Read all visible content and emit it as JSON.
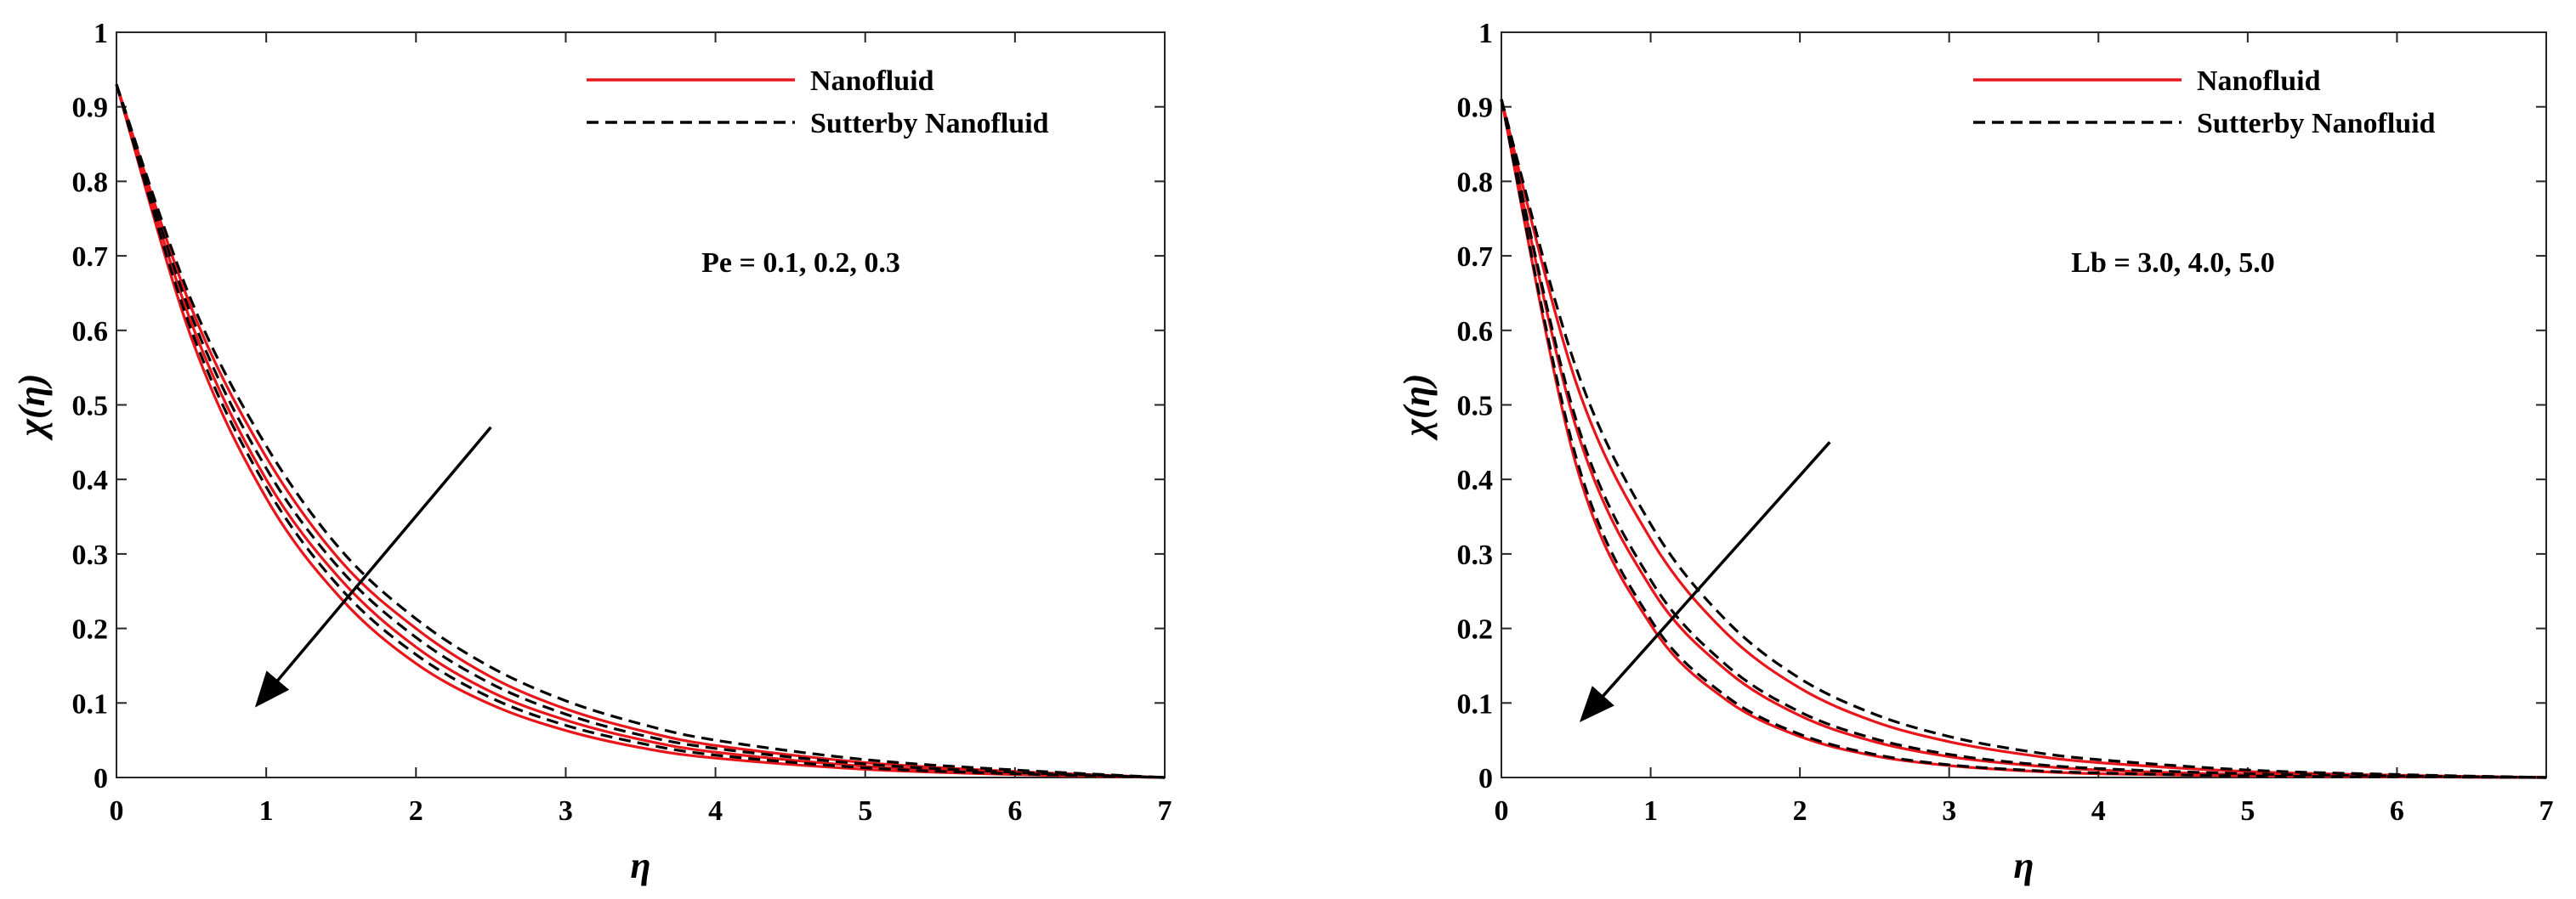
{
  "colors": {
    "nanofluid": "#e8161b",
    "sutterby": "#000000",
    "axes": "#262626"
  },
  "chart_data": [
    {
      "type": "line",
      "xlabel": "η",
      "ylabel": "χ(η)",
      "xlim": [
        0,
        7
      ],
      "ylim": [
        0,
        1
      ],
      "xticks": [
        "0",
        "1",
        "2",
        "3",
        "4",
        "5",
        "6",
        "7"
      ],
      "yticks": [
        "0",
        "0.1",
        "0.2",
        "0.3",
        "0.4",
        "0.5",
        "0.6",
        "0.7",
        "0.8",
        "0.9",
        "1"
      ],
      "legend": {
        "position": "top-right",
        "entries": [
          "Nanofluid",
          "Sutterby Nanofluid"
        ]
      },
      "annotation": "Pe = 0.1, 0.2, 0.3",
      "arrow": {
        "from": [
          2.5,
          0.47
        ],
        "to": [
          0.95,
          0.1
        ]
      },
      "series": [
        {
          "name": "Nanofluid (Pe = 0.1)",
          "style": "solid",
          "color": "red",
          "x": [
            0,
            0.5,
            1,
            1.5,
            2,
            2.5,
            3,
            3.5,
            4,
            5,
            6,
            7
          ],
          "y": [
            0.93,
            0.63,
            0.43,
            0.29,
            0.2,
            0.135,
            0.092,
            0.063,
            0.043,
            0.02,
            0.008,
            0.0
          ]
        },
        {
          "name": "Nanofluid (Pe = 0.2)",
          "style": "solid",
          "color": "red",
          "x": [
            0,
            0.5,
            1,
            1.5,
            2,
            2.5,
            3,
            3.5,
            4,
            5,
            6,
            7
          ],
          "y": [
            0.93,
            0.61,
            0.4,
            0.265,
            0.175,
            0.115,
            0.077,
            0.051,
            0.034,
            0.015,
            0.006,
            0.0
          ]
        },
        {
          "name": "Nanofluid (Pe = 0.3)",
          "style": "solid",
          "color": "red",
          "x": [
            0,
            0.5,
            1,
            1.5,
            2,
            2.5,
            3,
            3.5,
            4,
            5,
            6,
            7
          ],
          "y": [
            0.93,
            0.59,
            0.375,
            0.24,
            0.153,
            0.098,
            0.063,
            0.04,
            0.026,
            0.011,
            0.004,
            0.0
          ]
        },
        {
          "name": "Sutterby Nanofluid (Pe = 0.1)",
          "style": "dashed",
          "color": "black",
          "x": [
            0,
            0.5,
            1,
            1.5,
            2,
            2.5,
            3,
            3.5,
            4,
            5,
            6,
            7
          ],
          "y": [
            0.93,
            0.64,
            0.445,
            0.305,
            0.213,
            0.148,
            0.103,
            0.072,
            0.05,
            0.024,
            0.01,
            0.0
          ]
        },
        {
          "name": "Sutterby Nanofluid (Pe = 0.2)",
          "style": "dashed",
          "color": "black",
          "x": [
            0,
            0.5,
            1,
            1.5,
            2,
            2.5,
            3,
            3.5,
            4,
            5,
            6,
            7
          ],
          "y": [
            0.93,
            0.62,
            0.415,
            0.278,
            0.188,
            0.126,
            0.085,
            0.057,
            0.039,
            0.018,
            0.007,
            0.0
          ]
        },
        {
          "name": "Sutterby Nanofluid (Pe = 0.3)",
          "style": "dashed",
          "color": "black",
          "x": [
            0,
            0.5,
            1,
            1.5,
            2,
            2.5,
            3,
            3.5,
            4,
            5,
            6,
            7
          ],
          "y": [
            0.93,
            0.6,
            0.39,
            0.253,
            0.165,
            0.107,
            0.07,
            0.046,
            0.03,
            0.013,
            0.005,
            0.0
          ]
        }
      ]
    },
    {
      "type": "line",
      "xlabel": "η",
      "ylabel": "χ(η)",
      "xlim": [
        0,
        7
      ],
      "ylim": [
        0,
        1
      ],
      "xticks": [
        "0",
        "1",
        "2",
        "3",
        "4",
        "5",
        "6",
        "7"
      ],
      "yticks": [
        "0",
        "0.1",
        "0.2",
        "0.3",
        "0.4",
        "0.5",
        "0.6",
        "0.7",
        "0.8",
        "0.9",
        "1"
      ],
      "legend": {
        "position": "top-right",
        "entries": [
          "Nanofluid",
          "Sutterby Nanofluid"
        ]
      },
      "annotation": "Lb = 3.0, 4.0, 5.0",
      "arrow": {
        "from": [
          2.2,
          0.45
        ],
        "to": [
          0.55,
          0.08
        ]
      },
      "series": [
        {
          "name": "Nanofluid (Lb = 3.0)",
          "style": "solid",
          "color": "red",
          "x": [
            0,
            0.5,
            1,
            1.5,
            2,
            2.5,
            3,
            3.5,
            4,
            5,
            6,
            7
          ],
          "y": [
            0.91,
            0.53,
            0.32,
            0.195,
            0.12,
            0.075,
            0.048,
            0.031,
            0.02,
            0.008,
            0.003,
            0.0
          ]
        },
        {
          "name": "Nanofluid (Lb = 4.0)",
          "style": "solid",
          "color": "red",
          "x": [
            0,
            0.5,
            1,
            1.5,
            2,
            2.5,
            3,
            3.5,
            4,
            5,
            6,
            7
          ],
          "y": [
            0.91,
            0.47,
            0.255,
            0.145,
            0.083,
            0.048,
            0.028,
            0.017,
            0.01,
            0.004,
            0.001,
            0.0
          ]
        },
        {
          "name": "Nanofluid (Lb = 5.0)",
          "style": "solid",
          "color": "red",
          "x": [
            0,
            0.5,
            1,
            1.5,
            2,
            2.5,
            3,
            3.5,
            4,
            5,
            6,
            7
          ],
          "y": [
            0.91,
            0.42,
            0.205,
            0.105,
            0.055,
            0.029,
            0.016,
            0.009,
            0.005,
            0.002,
            0.001,
            0.0
          ]
        },
        {
          "name": "Sutterby Nanofluid (Lb = 3.0)",
          "style": "dashed",
          "color": "black",
          "x": [
            0,
            0.5,
            1,
            1.5,
            2,
            2.5,
            3,
            3.5,
            4,
            5,
            6,
            7
          ],
          "y": [
            0.91,
            0.55,
            0.34,
            0.212,
            0.133,
            0.085,
            0.055,
            0.036,
            0.024,
            0.01,
            0.004,
            0.0
          ]
        },
        {
          "name": "Sutterby Nanofluid (Lb = 4.0)",
          "style": "dashed",
          "color": "black",
          "x": [
            0,
            0.5,
            1,
            1.5,
            2,
            2.5,
            3,
            3.5,
            4,
            5,
            6,
            7
          ],
          "y": [
            0.91,
            0.48,
            0.265,
            0.152,
            0.088,
            0.052,
            0.031,
            0.019,
            0.012,
            0.005,
            0.002,
            0.0
          ]
        },
        {
          "name": "Sutterby Nanofluid (Lb = 5.0)",
          "style": "dashed",
          "color": "black",
          "x": [
            0,
            0.5,
            1,
            1.5,
            2,
            2.5,
            3,
            3.5,
            4,
            5,
            6,
            7
          ],
          "y": [
            0.91,
            0.43,
            0.212,
            0.11,
            0.058,
            0.031,
            0.017,
            0.01,
            0.006,
            0.002,
            0.001,
            0.0
          ]
        }
      ]
    }
  ]
}
